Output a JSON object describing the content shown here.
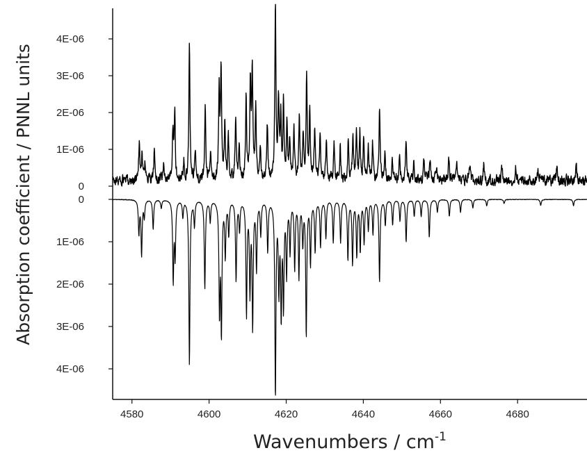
{
  "chart_data": [
    {
      "type": "line",
      "panel": "upper",
      "xlabel": "Wavenumbers / cm",
      "xlabel_superscript": "-1",
      "ylabel": "Absorption coefficient / PNNL units",
      "xlim": [
        4575,
        4698
      ],
      "ylim": [
        -3.5e-07,
        4.8e-06
      ],
      "x_ticks": [
        4580,
        4600,
        4620,
        4640,
        4660,
        4680
      ],
      "x_tick_labels": [
        "4580",
        "4600",
        "4620",
        "4640",
        "4660",
        "4680"
      ],
      "y_ticks": [
        0,
        1e-06,
        2e-06,
        3e-06,
        4e-06
      ],
      "y_tick_labels": [
        "0",
        "1E-06",
        "2E-06",
        "3E-06",
        "4E-06"
      ],
      "baseline": 1.5e-07,
      "noise": 1.5e-07,
      "peaks": [
        {
          "x": 4581.9,
          "y": 1.1e-06
        },
        {
          "x": 4582.6,
          "y": 7e-07
        },
        {
          "x": 4583.4,
          "y": 5e-07
        },
        {
          "x": 4585.8,
          "y": 8e-07
        },
        {
          "x": 4588.2,
          "y": 4e-07
        },
        {
          "x": 4590.6,
          "y": 1.3e-06
        },
        {
          "x": 4591.1,
          "y": 1.8e-06
        },
        {
          "x": 4593.5,
          "y": 5e-07
        },
        {
          "x": 4594.9,
          "y": 3.7e-06
        },
        {
          "x": 4596.4,
          "y": 8e-07
        },
        {
          "x": 4599.0,
          "y": 2e-06
        },
        {
          "x": 4600.4,
          "y": 7e-07
        },
        {
          "x": 4602.6,
          "y": 2.4e-06
        },
        {
          "x": 4603.1,
          "y": 3e-06
        },
        {
          "x": 4604.1,
          "y": 1.5e-06
        },
        {
          "x": 4605.0,
          "y": 1.1e-06
        },
        {
          "x": 4606.9,
          "y": 1.8e-06
        },
        {
          "x": 4607.8,
          "y": 9e-07
        },
        {
          "x": 4609.6,
          "y": 2.2e-06
        },
        {
          "x": 4610.7,
          "y": 2.6e-06
        },
        {
          "x": 4611.2,
          "y": 2.9e-06
        },
        {
          "x": 4612.1,
          "y": 1.9e-06
        },
        {
          "x": 4613.3,
          "y": 1e-06
        },
        {
          "x": 4615.1,
          "y": 1.5e-06
        },
        {
          "x": 4617.2,
          "y": 4.7e-06
        },
        {
          "x": 4618.0,
          "y": 2.1e-06
        },
        {
          "x": 4618.6,
          "y": 1.7e-06
        },
        {
          "x": 4619.3,
          "y": 2e-06
        },
        {
          "x": 4620.2,
          "y": 1.6e-06
        },
        {
          "x": 4620.9,
          "y": 1.2e-06
        },
        {
          "x": 4622.0,
          "y": 1.4e-06
        },
        {
          "x": 4623.4,
          "y": 1.7e-06
        },
        {
          "x": 4624.4,
          "y": 1.1e-06
        },
        {
          "x": 4625.3,
          "y": 2.9e-06
        },
        {
          "x": 4626.1,
          "y": 1.8e-06
        },
        {
          "x": 4627.4,
          "y": 1.4e-06
        },
        {
          "x": 4628.8,
          "y": 1.2e-06
        },
        {
          "x": 4630.4,
          "y": 1.1e-06
        },
        {
          "x": 4632.4,
          "y": 1e-06
        },
        {
          "x": 4634.0,
          "y": 9e-07
        },
        {
          "x": 4636.1,
          "y": 1.1e-06
        },
        {
          "x": 4637.3,
          "y": 1.3e-06
        },
        {
          "x": 4638.2,
          "y": 1.2e-06
        },
        {
          "x": 4639.1,
          "y": 1.3e-06
        },
        {
          "x": 4640.1,
          "y": 1.1e-06
        },
        {
          "x": 4641.3,
          "y": 8e-07
        },
        {
          "x": 4642.4,
          "y": 1e-06
        },
        {
          "x": 4644.2,
          "y": 2e-06
        },
        {
          "x": 4645.6,
          "y": 7e-07
        },
        {
          "x": 4647.5,
          "y": 6e-07
        },
        {
          "x": 4649.4,
          "y": 6e-07
        },
        {
          "x": 4651.1,
          "y": 1.1e-06
        },
        {
          "x": 4653.1,
          "y": 5e-07
        },
        {
          "x": 4655.7,
          "y": 5e-07
        },
        {
          "x": 4657.3,
          "y": 6e-07
        },
        {
          "x": 4659.0,
          "y": 4e-07
        },
        {
          "x": 4662.2,
          "y": 6e-07
        },
        {
          "x": 4664.2,
          "y": 5e-07
        },
        {
          "x": 4667.6,
          "y": 4e-07
        },
        {
          "x": 4671.2,
          "y": 4e-07
        },
        {
          "x": 4676.0,
          "y": 4e-07
        },
        {
          "x": 4679.5,
          "y": 3.5e-07
        },
        {
          "x": 4685.3,
          "y": 3e-07
        },
        {
          "x": 4690.2,
          "y": 3e-07
        },
        {
          "x": 4695.2,
          "y": 3.5e-07
        }
      ]
    },
    {
      "type": "line",
      "panel": "lower",
      "inverted": true,
      "xlim": [
        4575,
        4698
      ],
      "ylim": [
        -1.5e-07,
        4.7e-06
      ],
      "y_ticks": [
        0,
        1e-06,
        2e-06,
        3e-06,
        4e-06
      ],
      "y_tick_labels": [
        "0",
        "1E-06",
        "2E-06",
        "3E-06",
        "4E-06"
      ],
      "baseline": 0,
      "noise": 0,
      "peaks": [
        {
          "x": 4581.8,
          "y": 8e-07
        },
        {
          "x": 4582.5,
          "y": 1.3e-06
        },
        {
          "x": 4583.2,
          "y": 4e-07
        },
        {
          "x": 4585.5,
          "y": 7e-07
        },
        {
          "x": 4587.6,
          "y": 2e-07
        },
        {
          "x": 4590.7,
          "y": 1.9e-06
        },
        {
          "x": 4591.2,
          "y": 1.3e-06
        },
        {
          "x": 4593.2,
          "y": 4e-07
        },
        {
          "x": 4594.9,
          "y": 3.9e-06
        },
        {
          "x": 4596.2,
          "y": 6e-07
        },
        {
          "x": 4598.9,
          "y": 2.1e-06
        },
        {
          "x": 4600.3,
          "y": 5e-07
        },
        {
          "x": 4602.7,
          "y": 2.6e-06
        },
        {
          "x": 4603.2,
          "y": 3.05e-06
        },
        {
          "x": 4604.2,
          "y": 1.3e-06
        },
        {
          "x": 4605.1,
          "y": 8e-07
        },
        {
          "x": 4607.0,
          "y": 1.9e-06
        },
        {
          "x": 4607.9,
          "y": 7e-07
        },
        {
          "x": 4609.7,
          "y": 2.7e-06
        },
        {
          "x": 4610.6,
          "y": 2.1e-06
        },
        {
          "x": 4611.3,
          "y": 2.95e-06
        },
        {
          "x": 4612.3,
          "y": 1.6e-06
        },
        {
          "x": 4613.4,
          "y": 8e-07
        },
        {
          "x": 4615.2,
          "y": 1.2e-06
        },
        {
          "x": 4617.2,
          "y": 4.6e-06
        },
        {
          "x": 4618.1,
          "y": 2e-06
        },
        {
          "x": 4618.7,
          "y": 2.6e-06
        },
        {
          "x": 4619.3,
          "y": 2.4e-06
        },
        {
          "x": 4620.1,
          "y": 1.7e-06
        },
        {
          "x": 4621.0,
          "y": 1.2e-06
        },
        {
          "x": 4622.2,
          "y": 1.6e-06
        },
        {
          "x": 4623.3,
          "y": 1.8e-06
        },
        {
          "x": 4624.3,
          "y": 1e-06
        },
        {
          "x": 4625.2,
          "y": 3.2e-06
        },
        {
          "x": 4626.3,
          "y": 1.5e-06
        },
        {
          "x": 4627.5,
          "y": 1.2e-06
        },
        {
          "x": 4628.9,
          "y": 1.1e-06
        },
        {
          "x": 4630.3,
          "y": 9e-07
        },
        {
          "x": 4632.2,
          "y": 1e-06
        },
        {
          "x": 4634.1,
          "y": 1e-06
        },
        {
          "x": 4636.0,
          "y": 1.4e-06
        },
        {
          "x": 4637.2,
          "y": 1.5e-06
        },
        {
          "x": 4638.3,
          "y": 1.3e-06
        },
        {
          "x": 4639.2,
          "y": 1.2e-06
        },
        {
          "x": 4640.2,
          "y": 1e-06
        },
        {
          "x": 4641.3,
          "y": 7e-07
        },
        {
          "x": 4642.5,
          "y": 8e-07
        },
        {
          "x": 4644.2,
          "y": 1.95e-06
        },
        {
          "x": 4645.7,
          "y": 6e-07
        },
        {
          "x": 4647.6,
          "y": 6e-07
        },
        {
          "x": 4649.5,
          "y": 5e-07
        },
        {
          "x": 4651.1,
          "y": 1e-06
        },
        {
          "x": 4653.2,
          "y": 4e-07
        },
        {
          "x": 4655.0,
          "y": 4e-07
        },
        {
          "x": 4657.1,
          "y": 9e-07
        },
        {
          "x": 4659.2,
          "y": 3e-07
        },
        {
          "x": 4662.3,
          "y": 4e-07
        },
        {
          "x": 4665.2,
          "y": 3e-07
        },
        {
          "x": 4668.4,
          "y": 2e-07
        },
        {
          "x": 4672.0,
          "y": 1.5e-07
        },
        {
          "x": 4676.5,
          "y": 1e-07
        },
        {
          "x": 4686.0,
          "y": 1.5e-07
        },
        {
          "x": 4694.5,
          "y": 1.5e-07
        }
      ]
    }
  ]
}
